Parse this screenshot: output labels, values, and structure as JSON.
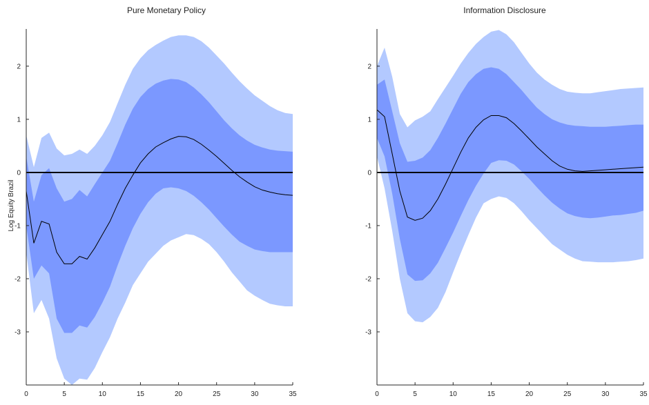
{
  "chart_data": [
    {
      "type": "area",
      "title": "Pure Monetary Policy",
      "ylabel": "Log Equity Brazil",
      "xlabel": "",
      "xlim": [
        0,
        35
      ],
      "ylim": [
        -4,
        2.7
      ],
      "xticks": [
        0,
        5,
        10,
        15,
        20,
        25,
        30,
        35
      ],
      "yticks": [
        -3,
        -2,
        -1,
        0,
        1,
        2
      ],
      "colors": {
        "outer_band": "#b3c9ff",
        "inner_band": "#7b98ff",
        "median": "#000000",
        "zero_line": "#000000"
      },
      "x": [
        0,
        1,
        2,
        3,
        4,
        5,
        6,
        7,
        8,
        9,
        10,
        11,
        12,
        13,
        14,
        15,
        16,
        17,
        18,
        19,
        20,
        21,
        22,
        23,
        24,
        25,
        26,
        27,
        28,
        29,
        30,
        31,
        32,
        33,
        34,
        35
      ],
      "median": [
        -0.35,
        -1.33,
        -0.92,
        -0.97,
        -1.5,
        -1.72,
        -1.72,
        -1.58,
        -1.63,
        -1.42,
        -1.17,
        -0.92,
        -0.6,
        -0.3,
        -0.05,
        0.18,
        0.35,
        0.48,
        0.56,
        0.63,
        0.68,
        0.67,
        0.62,
        0.53,
        0.42,
        0.3,
        0.17,
        0.04,
        -0.08,
        -0.18,
        -0.27,
        -0.33,
        -0.37,
        -0.4,
        -0.42,
        -0.43
      ],
      "inner_lower": [
        -1.0,
        -2.0,
        -1.75,
        -1.9,
        -2.75,
        -3.02,
        -3.02,
        -2.88,
        -2.92,
        -2.72,
        -2.45,
        -2.15,
        -1.75,
        -1.38,
        -1.05,
        -0.78,
        -0.56,
        -0.4,
        -0.3,
        -0.28,
        -0.3,
        -0.35,
        -0.44,
        -0.56,
        -0.7,
        -0.86,
        -1.02,
        -1.17,
        -1.3,
        -1.38,
        -1.45,
        -1.48,
        -1.5,
        -1.5,
        -1.5,
        -1.5
      ],
      "inner_upper": [
        0.3,
        -0.55,
        -0.05,
        0.08,
        -0.3,
        -0.55,
        -0.5,
        -0.33,
        -0.45,
        -0.22,
        0.0,
        0.22,
        0.55,
        0.9,
        1.2,
        1.42,
        1.57,
        1.67,
        1.73,
        1.76,
        1.75,
        1.7,
        1.6,
        1.47,
        1.32,
        1.15,
        0.98,
        0.83,
        0.7,
        0.6,
        0.52,
        0.47,
        0.43,
        0.41,
        0.4,
        0.39
      ],
      "outer_lower": [
        -1.5,
        -2.65,
        -2.4,
        -2.75,
        -3.5,
        -3.88,
        -4.0,
        -3.88,
        -3.9,
        -3.68,
        -3.38,
        -3.1,
        -2.75,
        -2.45,
        -2.12,
        -1.9,
        -1.68,
        -1.53,
        -1.38,
        -1.28,
        -1.22,
        -1.16,
        -1.18,
        -1.25,
        -1.35,
        -1.5,
        -1.68,
        -1.88,
        -2.05,
        -2.22,
        -2.32,
        -2.4,
        -2.47,
        -2.5,
        -2.52,
        -2.52
      ],
      "outer_upper": [
        0.7,
        0.1,
        0.65,
        0.75,
        0.45,
        0.32,
        0.35,
        0.43,
        0.35,
        0.5,
        0.7,
        0.95,
        1.3,
        1.65,
        1.95,
        2.15,
        2.3,
        2.4,
        2.48,
        2.55,
        2.58,
        2.58,
        2.55,
        2.47,
        2.35,
        2.2,
        2.05,
        1.88,
        1.72,
        1.58,
        1.45,
        1.35,
        1.25,
        1.17,
        1.12,
        1.1
      ]
    },
    {
      "type": "area",
      "title": "Information Disclosure",
      "ylabel": "",
      "xlabel": "",
      "xlim": [
        0,
        35
      ],
      "ylim": [
        -4,
        2.7
      ],
      "xticks": [
        0,
        5,
        10,
        15,
        20,
        25,
        30,
        35
      ],
      "yticks": [
        -3,
        -2,
        -1,
        0,
        1,
        2
      ],
      "colors": {
        "outer_band": "#b3c9ff",
        "inner_band": "#7b98ff",
        "median": "#000000",
        "zero_line": "#000000"
      },
      "x": [
        0,
        1,
        2,
        3,
        4,
        5,
        6,
        7,
        8,
        9,
        10,
        11,
        12,
        13,
        14,
        15,
        16,
        17,
        18,
        19,
        20,
        21,
        22,
        23,
        24,
        25,
        26,
        27,
        28,
        29,
        30,
        31,
        32,
        33,
        34,
        35
      ],
      "median": [
        1.18,
        1.05,
        0.35,
        -0.35,
        -0.84,
        -0.9,
        -0.86,
        -0.72,
        -0.5,
        -0.22,
        0.08,
        0.38,
        0.65,
        0.85,
        0.99,
        1.07,
        1.07,
        1.03,
        0.92,
        0.78,
        0.63,
        0.48,
        0.35,
        0.22,
        0.12,
        0.06,
        0.03,
        0.02,
        0.03,
        0.04,
        0.05,
        0.06,
        0.07,
        0.08,
        0.09,
        0.1
      ],
      "inner_lower": [
        0.65,
        0.3,
        -0.4,
        -1.25,
        -1.92,
        -2.04,
        -2.03,
        -1.9,
        -1.7,
        -1.42,
        -1.13,
        -0.82,
        -0.52,
        -0.25,
        -0.02,
        0.18,
        0.23,
        0.22,
        0.15,
        0.02,
        -0.12,
        -0.28,
        -0.43,
        -0.57,
        -0.68,
        -0.77,
        -0.82,
        -0.85,
        -0.86,
        -0.85,
        -0.83,
        -0.81,
        -0.8,
        -0.78,
        -0.76,
        -0.72
      ],
      "inner_upper": [
        1.65,
        1.75,
        1.15,
        0.55,
        0.2,
        0.22,
        0.28,
        0.42,
        0.65,
        0.92,
        1.2,
        1.48,
        1.7,
        1.85,
        1.95,
        1.98,
        1.95,
        1.85,
        1.7,
        1.55,
        1.38,
        1.22,
        1.1,
        1.0,
        0.94,
        0.9,
        0.88,
        0.87,
        0.86,
        0.86,
        0.86,
        0.87,
        0.88,
        0.89,
        0.9,
        0.9
      ],
      "outer_lower": [
        0.3,
        -0.3,
        -1.1,
        -2.0,
        -2.65,
        -2.8,
        -2.82,
        -2.72,
        -2.55,
        -2.25,
        -1.88,
        -1.52,
        -1.18,
        -0.85,
        -0.58,
        -0.5,
        -0.45,
        -0.48,
        -0.58,
        -0.73,
        -0.9,
        -1.05,
        -1.2,
        -1.35,
        -1.45,
        -1.55,
        -1.62,
        -1.67,
        -1.68,
        -1.69,
        -1.69,
        -1.69,
        -1.68,
        -1.67,
        -1.65,
        -1.62
      ],
      "outer_upper": [
        2.0,
        2.35,
        1.8,
        1.1,
        0.85,
        0.98,
        1.05,
        1.15,
        1.38,
        1.6,
        1.82,
        2.05,
        2.25,
        2.42,
        2.55,
        2.65,
        2.68,
        2.6,
        2.45,
        2.25,
        2.05,
        1.88,
        1.75,
        1.65,
        1.57,
        1.52,
        1.5,
        1.49,
        1.49,
        1.51,
        1.53,
        1.55,
        1.57,
        1.58,
        1.59,
        1.6
      ]
    }
  ]
}
